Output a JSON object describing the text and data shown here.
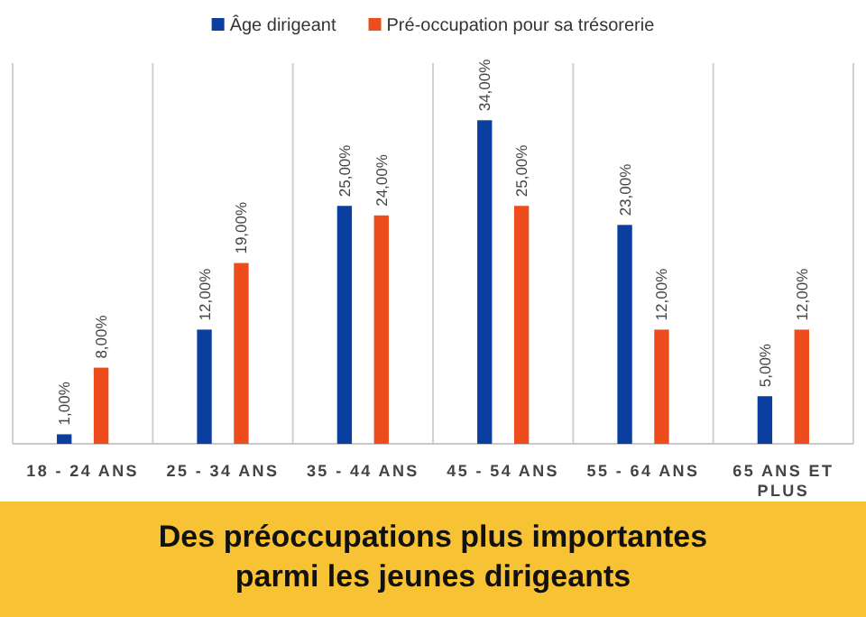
{
  "chart_data": {
    "type": "bar",
    "title": "Des préoccupations plus importantes parmi les jeunes dirigeants",
    "categories": [
      "18 - 24 ANS",
      "25 - 34 ANS",
      "35 - 44 ANS",
      "45 - 54 ANS",
      "55 - 64 ANS",
      "65 ANS ET PLUS"
    ],
    "series": [
      {
        "name": "Âge dirigeant",
        "color": "#0a3fa0",
        "values": [
          1,
          12,
          25,
          34,
          23,
          5
        ],
        "value_labels": [
          "1,00%",
          "12,00%",
          "25,00%",
          "34,00%",
          "23,00%",
          "5,00%"
        ]
      },
      {
        "name": "Pré-occupation pour sa trésorerie",
        "color": "#ee4c1c",
        "values": [
          8,
          19,
          24,
          25,
          12,
          12
        ],
        "value_labels": [
          "8,00%",
          "19,00%",
          "24,00%",
          "25,00%",
          "12,00%",
          "12,00%"
        ]
      }
    ],
    "ylim": [
      0,
      40
    ],
    "grid": "x",
    "legend": "top",
    "tick_labels": "x"
  }
}
